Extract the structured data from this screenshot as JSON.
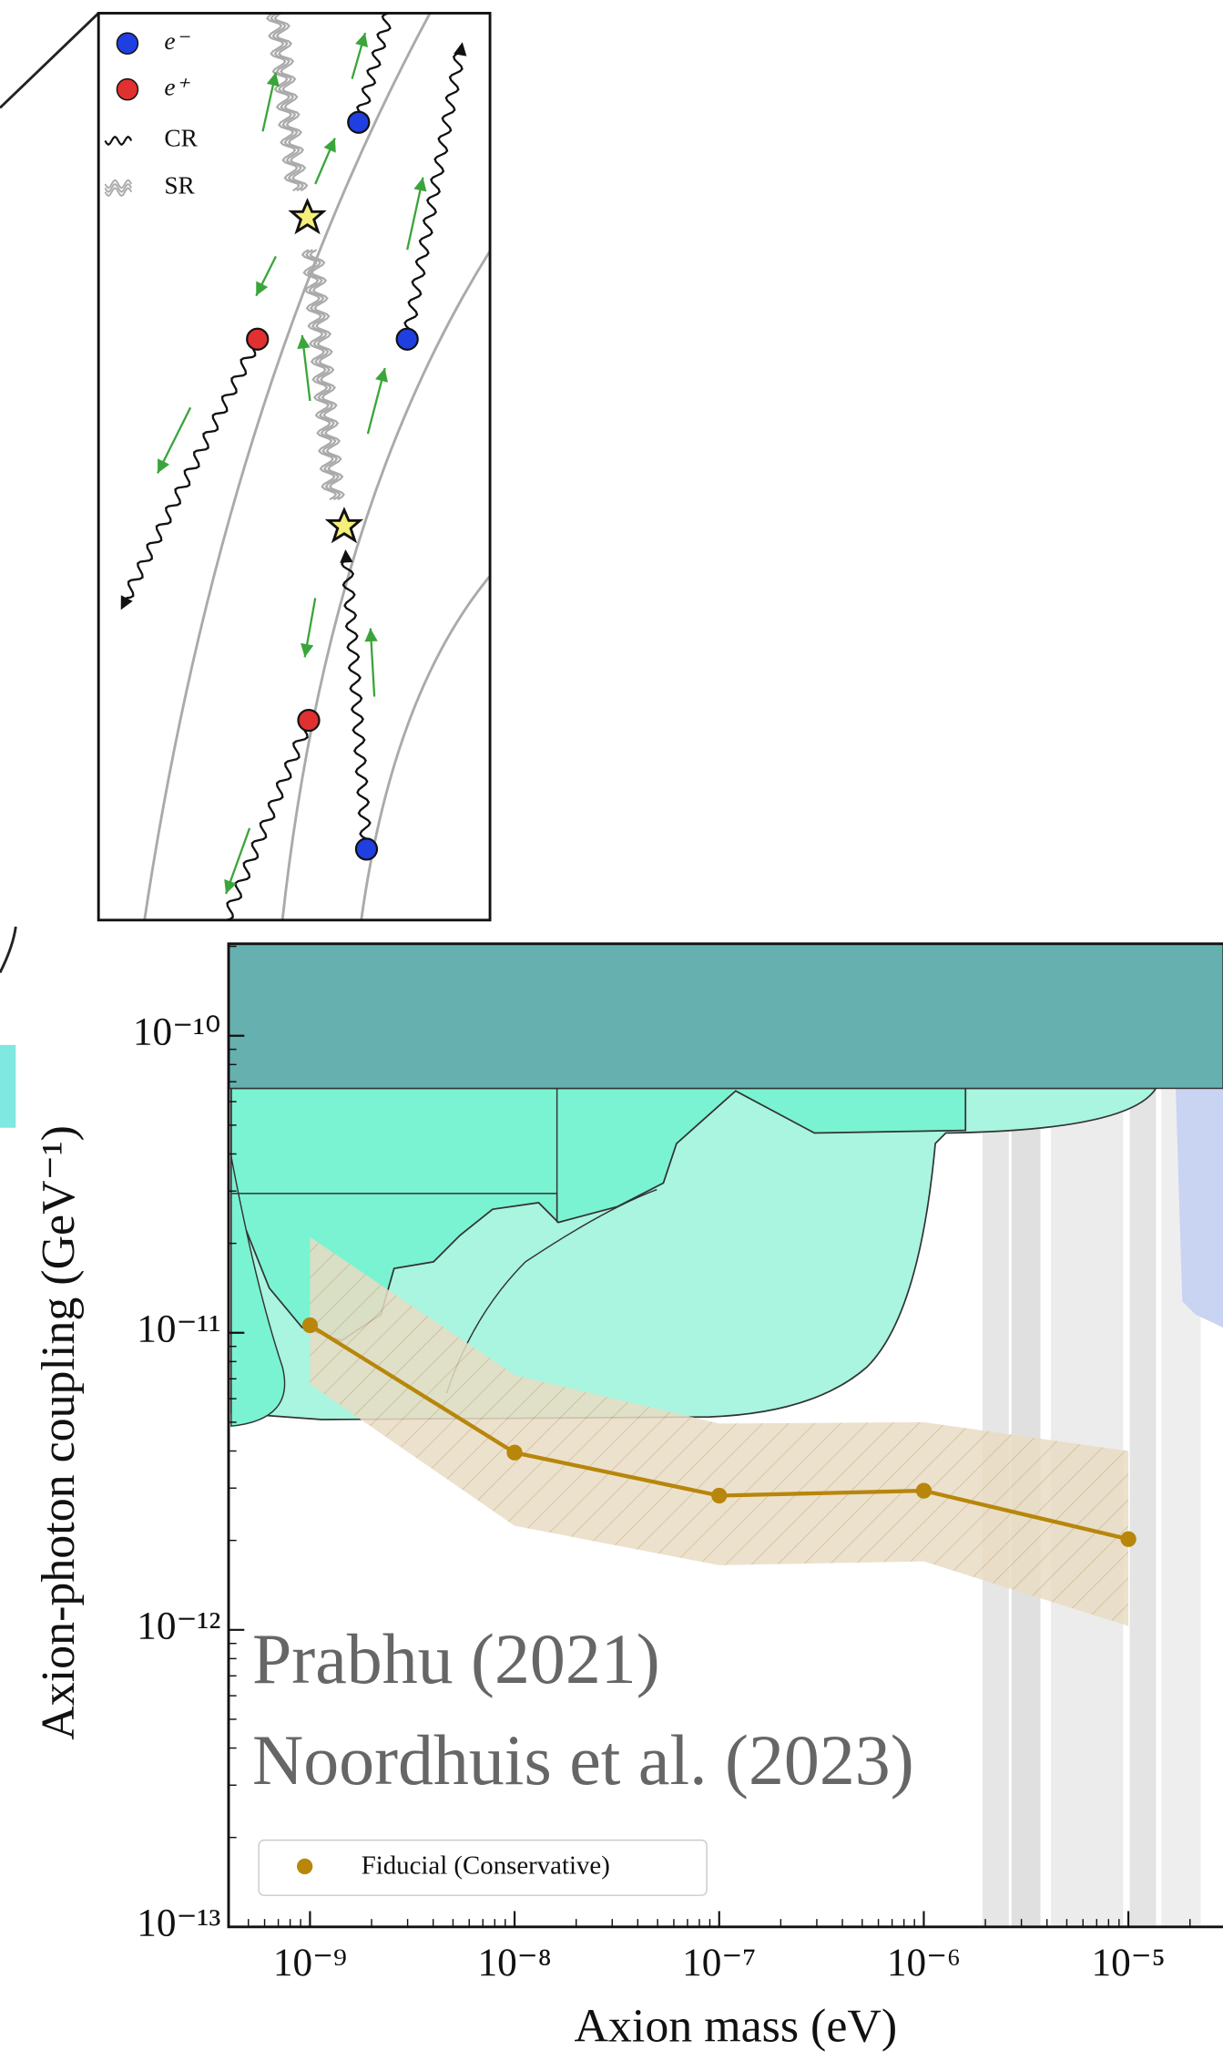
{
  "diagram": {
    "legend": [
      "e⁻",
      "e⁺",
      "CR",
      "SR"
    ]
  },
  "chart_data": {
    "type": "line",
    "xlabel": "Axion mass (eV)",
    "ylabel": "Axion-photon coupling (GeV⁻¹)",
    "xscale": "log",
    "yscale": "log",
    "xlim": [
      4e-10,
      2.9e-05
    ],
    "ylim": [
      1e-13,
      2.04e-10
    ],
    "xticks": [
      {
        "value": 1e-09,
        "label": "10⁻⁹"
      },
      {
        "value": 1e-08,
        "label": "10⁻⁸"
      },
      {
        "value": 1e-07,
        "label": "10⁻⁷"
      },
      {
        "value": 1e-06,
        "label": "10⁻⁶"
      },
      {
        "value": 1e-05,
        "label": "10⁻⁵"
      }
    ],
    "yticks": [
      {
        "value": 1e-13,
        "label": "10⁻¹³"
      },
      {
        "value": 1e-12,
        "label": "10⁻¹²"
      },
      {
        "value": 1e-11,
        "label": "10⁻¹¹"
      },
      {
        "value": 1e-10,
        "label": "10⁻¹⁰"
      }
    ],
    "annotations": [
      "Prabhu (2021)",
      "Noordhuis et al. (2023)"
    ],
    "legend": "lower left",
    "x": [
      1e-09,
      1e-08,
      1e-07,
      1e-06,
      1e-05
    ],
    "series": [
      {
        "name": "Fiducial (Conservative)",
        "color": "#b8860b",
        "values": [
          1.06e-11,
          3.95e-12,
          2.83e-12,
          2.94e-12,
          2.02e-12
        ],
        "band_upper": [
          2.1e-11,
          7.2e-12,
          4.95e-12,
          5e-12,
          4e-12
        ],
        "band_lower": [
          6.7e-12,
          2.24e-12,
          1.65e-12,
          1.7e-12,
          1.03e-12
        ]
      }
    ]
  }
}
